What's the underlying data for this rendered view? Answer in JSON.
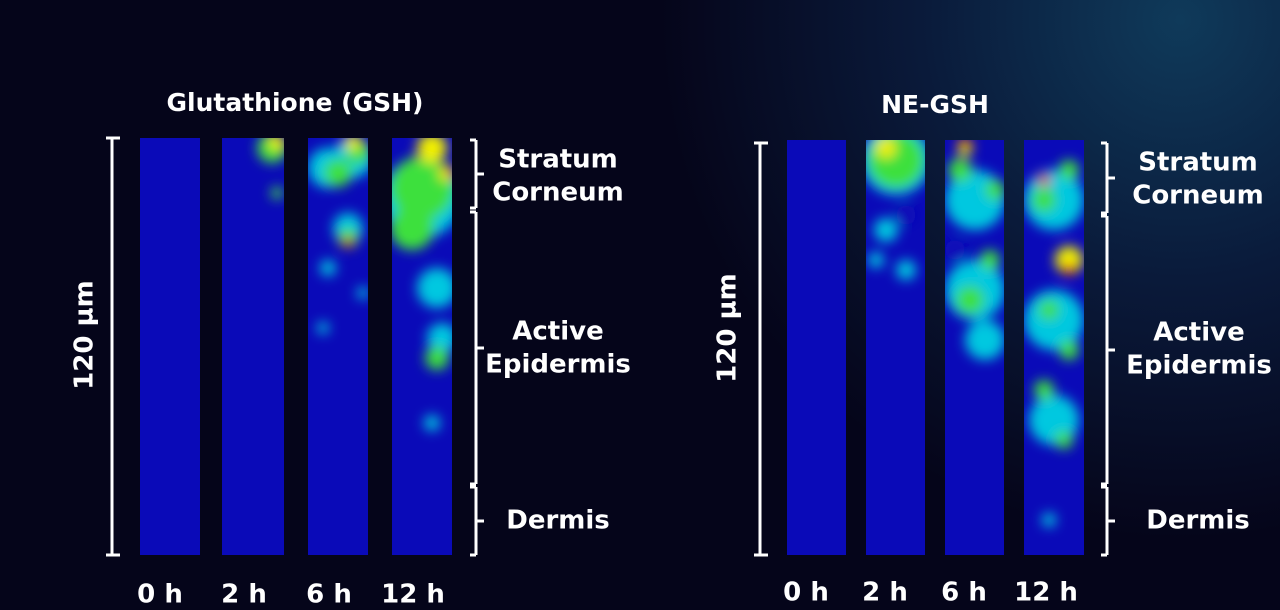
{
  "panels": [
    {
      "title": "Glutathione (GSH)",
      "scale_label": "120 µm",
      "layers": [
        [
          "Stratum",
          "Corneum"
        ],
        [
          "Active",
          "Epidermis"
        ],
        [
          "Dermis"
        ]
      ],
      "times": [
        "0 h",
        "2 h",
        "6 h",
        "12 h"
      ]
    },
    {
      "title": "NE-GSH",
      "scale_label": "120 µm",
      "layers": [
        [
          "Stratum",
          "Corneum"
        ],
        [
          "Active",
          "Epidermis"
        ],
        [
          "Dermis"
        ]
      ],
      "times": [
        "0 h",
        "2 h",
        "6 h",
        "12 h"
      ]
    }
  ]
}
